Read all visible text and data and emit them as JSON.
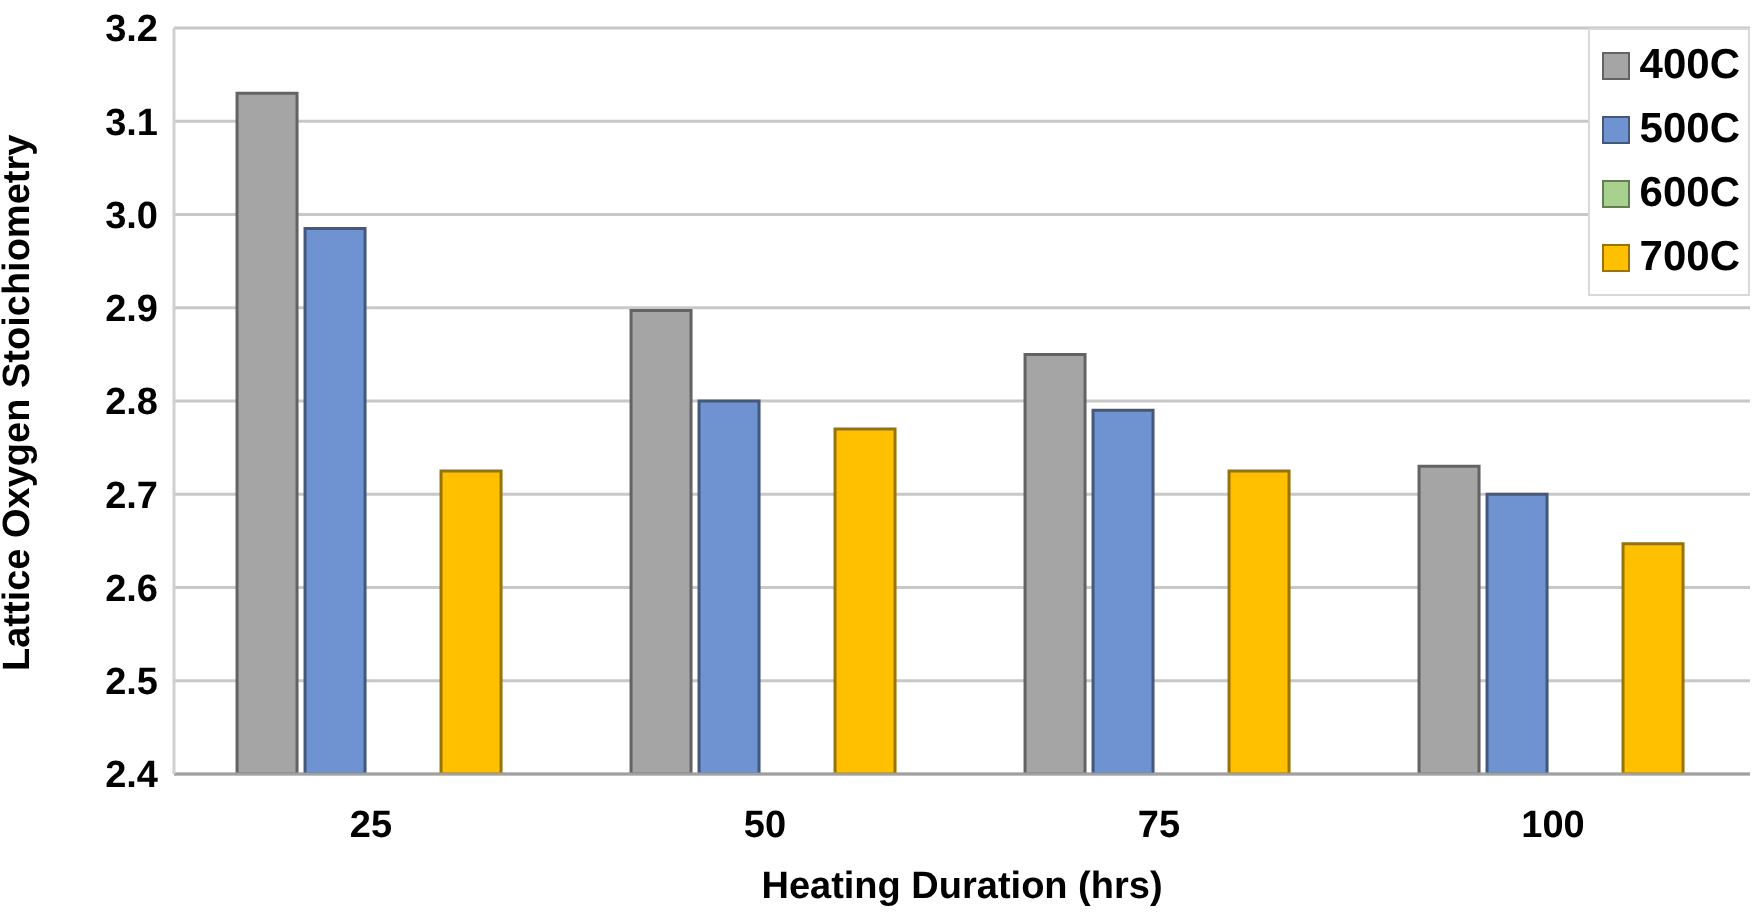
{
  "chart_data": {
    "type": "bar",
    "xlabel": "Heating Duration (hrs)",
    "ylabel": "Lattice Oxygen Stoichiometry",
    "categories": [
      "25",
      "50",
      "75",
      "100"
    ],
    "series": [
      {
        "name": "400C",
        "color": "#a5a5a5",
        "values": [
          3.13,
          2.897,
          2.85,
          2.73
        ]
      },
      {
        "name": "500C",
        "color": "#6f93d1",
        "values": [
          2.985,
          2.8,
          2.79,
          2.7
        ]
      },
      {
        "name": "600C",
        "color": "#a9d18e",
        "values": [
          null,
          null,
          null,
          null
        ]
      },
      {
        "name": "700C",
        "color": "#ffc000",
        "values": [
          2.725,
          2.77,
          2.725,
          2.647
        ]
      }
    ],
    "ylim": [
      2.4,
      3.2
    ],
    "yticks": [
      2.4,
      2.5,
      2.6,
      2.7,
      2.8,
      2.9,
      {
        "value": 3,
        "label": "3.0"
      },
      3.1,
      3.2
    ],
    "grid": "y",
    "legend": "top right"
  }
}
